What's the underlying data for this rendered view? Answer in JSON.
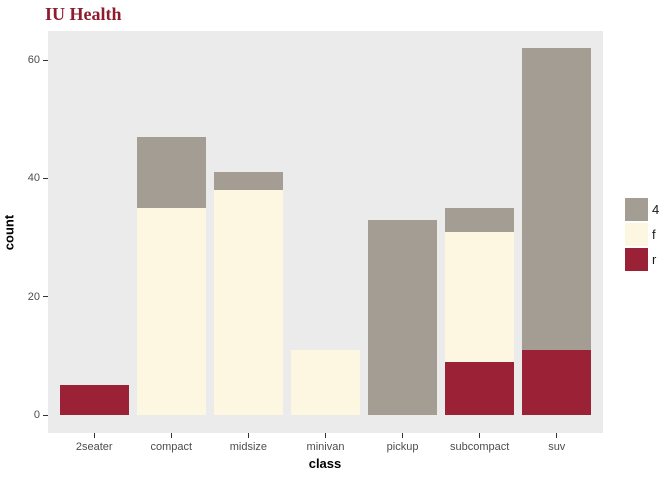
{
  "title": "IU Health",
  "colors": {
    "title_color": "#8e1c2e",
    "panel_bg": "#ebebeb",
    "axis_tick_text": "#4d4d4d",
    "series_4": "#a49d94",
    "series_f": "#fdf7e2",
    "series_r": "#9a2136"
  },
  "chart_data": {
    "type": "bar",
    "stacked": true,
    "title": "IU Health",
    "xlabel": "class",
    "ylabel": "count",
    "categories": [
      "2seater",
      "compact",
      "midsize",
      "minivan",
      "pickup",
      "subcompact",
      "suv"
    ],
    "series": [
      {
        "name": "r",
        "color": "#9a2136",
        "values": [
          5,
          0,
          0,
          0,
          0,
          9,
          11
        ]
      },
      {
        "name": "f",
        "color": "#fdf7e2",
        "values": [
          0,
          35,
          38,
          11,
          0,
          22,
          0
        ]
      },
      {
        "name": "4",
        "color": "#a49d94",
        "values": [
          0,
          12,
          3,
          0,
          33,
          4,
          51
        ]
      }
    ],
    "totals": [
      5,
      47,
      41,
      11,
      33,
      35,
      62
    ],
    "ylim": [
      0,
      62
    ],
    "yticks": [
      0,
      20,
      40,
      60
    ],
    "grid": false,
    "legend": {
      "position": "right",
      "title": "",
      "entries": [
        "4",
        "f",
        "r"
      ]
    }
  }
}
